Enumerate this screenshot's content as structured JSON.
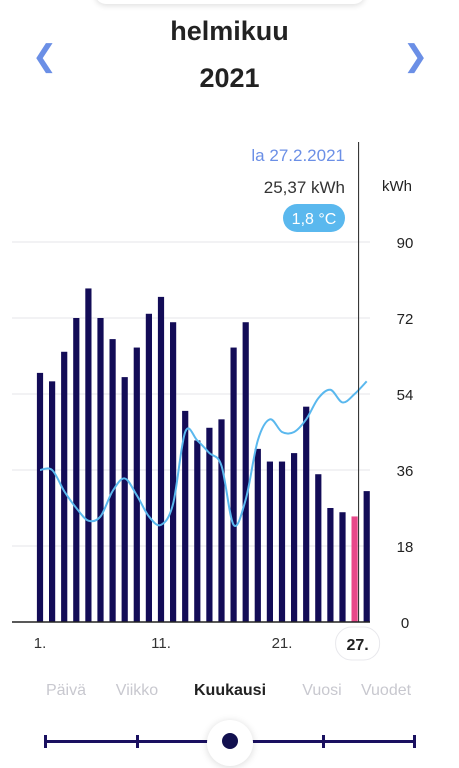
{
  "header": {
    "month": "helmikuu",
    "year": "2021",
    "prev_icon": "chevron-left-icon",
    "next_icon": "chevron-right-icon"
  },
  "tooltip": {
    "date": "la 27.2.2021",
    "energy": "25,37 kWh",
    "temperature": "1,8 °C"
  },
  "chart_data": {
    "type": "bar",
    "unit_label": "kWh",
    "ylim": [
      0,
      90
    ],
    "y_ticks": [
      "0",
      "18",
      "36",
      "54",
      "72",
      "90"
    ],
    "x_tick_labels": [
      {
        "day": 1,
        "label": "1."
      },
      {
        "day": 11,
        "label": "11."
      },
      {
        "day": 21,
        "label": "21."
      },
      {
        "day": 27,
        "label": "27."
      }
    ],
    "days": [
      1,
      2,
      3,
      4,
      5,
      6,
      7,
      8,
      9,
      10,
      11,
      12,
      13,
      14,
      15,
      16,
      17,
      18,
      19,
      20,
      21,
      22,
      23,
      24,
      25,
      26,
      27,
      28
    ],
    "series": [
      {
        "values": [
          59,
          57,
          64,
          72,
          79,
          72,
          67,
          58,
          65,
          73,
          77,
          71,
          50,
          43,
          46,
          48,
          65,
          71,
          41,
          38,
          38,
          40,
          51,
          35,
          27,
          26,
          25,
          31
        ]
      }
    ],
    "temperature_line": [
      36,
      36,
      31,
      27,
      24,
      25,
      31,
      34,
      30,
      25,
      23,
      28,
      45,
      43,
      40,
      37,
      23,
      29,
      43,
      48,
      45,
      45,
      48,
      53,
      55,
      52,
      54,
      57
    ],
    "selected_day": 27,
    "grid": true,
    "colors": {
      "bar": "#130c57",
      "selected_bar": "#e8488a",
      "temperature_line": "#5ab8ee",
      "axis": "#222222",
      "grid": "#e6e6ea",
      "accent": "#6b8fe6",
      "temp_badge": "#5ab8ee"
    }
  },
  "period_tabs": {
    "items": [
      "Päivä",
      "Viikko",
      "Kuukausi",
      "Vuosi",
      "Vuodet"
    ],
    "active": "Kuukausi"
  }
}
